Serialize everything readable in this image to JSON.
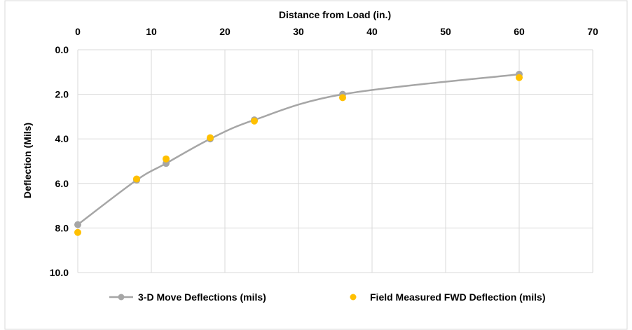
{
  "chart_data": {
    "type": "scatter",
    "xlabel": "Distance from Load (in.)",
    "ylabel": "Deflection (Mils)",
    "xlim": [
      0,
      70
    ],
    "ylim": [
      0,
      10
    ],
    "x_axis_position": "top",
    "y_axis_reversed": true,
    "grid": true,
    "legend_position": "bottom",
    "x_ticks": [
      "0",
      "10",
      "20",
      "30",
      "40",
      "50",
      "60",
      "70"
    ],
    "y_ticks": [
      "0.0",
      "2.0",
      "4.0",
      "6.0",
      "8.0",
      "10.0"
    ],
    "series": [
      {
        "name": "3-D Move Deflections (mils)",
        "style": "smooth-line-markers",
        "color": "#a6a6a6",
        "x": [
          0,
          8,
          12,
          18,
          24,
          36,
          60
        ],
        "y": [
          7.85,
          5.85,
          5.1,
          4.0,
          3.15,
          2.0,
          1.1
        ]
      },
      {
        "name": "Field Measured FWD Deflection (mils)",
        "style": "markers",
        "color": "#ffc000",
        "x": [
          0,
          8,
          12,
          18,
          24,
          36,
          60
        ],
        "y": [
          8.2,
          5.8,
          4.9,
          3.95,
          3.2,
          2.15,
          1.25
        ]
      }
    ]
  }
}
